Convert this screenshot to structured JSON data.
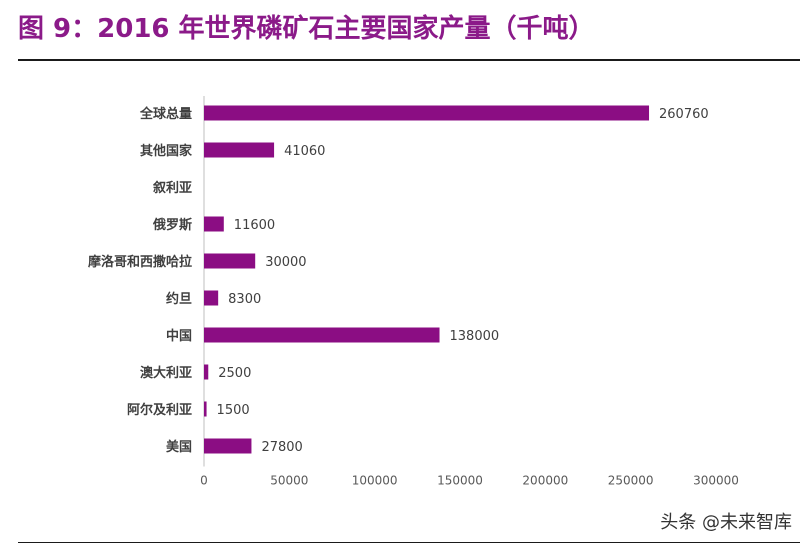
{
  "header": {
    "title": "图 9：2016 年世界磷矿石主要国家产量（千吨）"
  },
  "watermark": "头条 @未来智库",
  "colors": {
    "title": "#8B1A89",
    "bar": "#8B0D83",
    "axis": "#bfbfbf"
  },
  "chart_data": {
    "type": "bar",
    "orientation": "horizontal",
    "title": "图 9：2016 年世界磷矿石主要国家产量（千吨）",
    "categories": [
      "全球总量",
      "其他国家",
      "叙利亚",
      "俄罗斯",
      "摩洛哥和西撒哈拉",
      "约旦",
      "中国",
      "澳大利亚",
      "阿尔及利亚",
      "美国"
    ],
    "values": [
      260760,
      41060,
      null,
      11600,
      30000,
      8300,
      138000,
      2500,
      1500,
      27800
    ],
    "value_labels": [
      "260760",
      "41060",
      "",
      "11600",
      "30000",
      "8300",
      "138000",
      "2500",
      "1500",
      "27800"
    ],
    "xlim": [
      0,
      300000
    ],
    "x_ticks": [
      "0",
      "50000",
      "100000",
      "150000",
      "200000",
      "250000",
      "300000"
    ],
    "grid": false,
    "legend": "none"
  }
}
